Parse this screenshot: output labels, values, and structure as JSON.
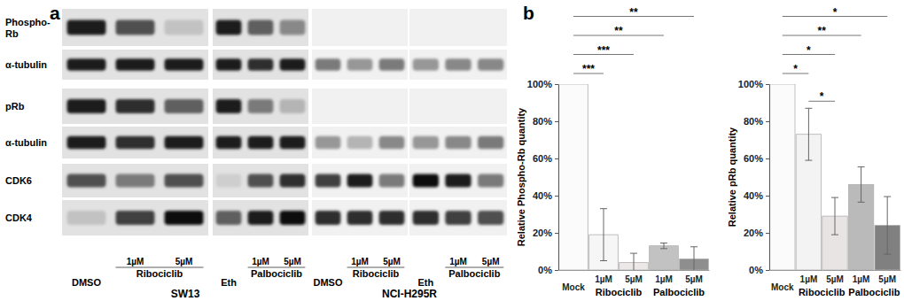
{
  "panel_labels": [
    "a",
    "b"
  ],
  "blot": {
    "row_labels": [
      [
        "Phospho-",
        "Rb"
      ],
      [
        "α-tubulin"
      ],
      [
        "pRb"
      ],
      [
        "α-tubulin"
      ],
      [
        "CDK6"
      ],
      [
        "CDK4"
      ]
    ],
    "cell_lines": [
      {
        "name": "SW13",
        "treatments": [
          {
            "control": "DMSO",
            "drug": "Ribociclib",
            "doses": [
              "1µM",
              "5µM"
            ]
          },
          {
            "control": "Eth",
            "drug": "Palbociclib",
            "doses": [
              "1µM",
              "5µM"
            ]
          }
        ]
      },
      {
        "name": "NCI-H295R",
        "treatments": [
          {
            "control": "DMSO",
            "drug": "Ribociclib",
            "doses": [
              "1µM",
              "5µM"
            ]
          },
          {
            "control": "Eth",
            "drug": "Palbociclib",
            "doses": [
              "1µM",
              "5µM"
            ]
          }
        ]
      }
    ]
  },
  "chart_data": [
    {
      "type": "bar",
      "y_label": "Relative Phospho-Rb quantity",
      "categories": [
        "Mock",
        "1µM",
        "5µM",
        "1µM",
        "5µM"
      ],
      "values": [
        100,
        19,
        4,
        13,
        6
      ],
      "errors": [
        null,
        14,
        5,
        1.5,
        6.5
      ],
      "colors": [
        "#fbfbfb",
        "#f6f6f6",
        "#ece8e8",
        "#c2c2c2",
        "#8e8e8e"
      ],
      "ylim": [
        0,
        100
      ],
      "yticks": [
        {
          "value": 0,
          "label": "0%"
        },
        {
          "value": 20,
          "label": "20%"
        },
        {
          "value": 40,
          "label": "40%"
        },
        {
          "value": 60,
          "label": "60%"
        },
        {
          "value": 80,
          "label": "80%"
        },
        {
          "value": 100,
          "label": "100%"
        }
      ],
      "groups": [
        {
          "label": "Ribociclib",
          "from": 1,
          "to": 2
        },
        {
          "label": "Palbociclib",
          "from": 3,
          "to": 4
        }
      ],
      "significance": [
        {
          "from": 0,
          "to": 1,
          "label": "***"
        },
        {
          "from": 0,
          "to": 2,
          "label": "***"
        },
        {
          "from": 0,
          "to": 3,
          "label": "**"
        },
        {
          "from": 0,
          "to": 4,
          "label": "**"
        }
      ]
    },
    {
      "type": "bar",
      "y_label": "Relative pRb quantity",
      "categories": [
        "Mock",
        "1µM",
        "5µM",
        "1µM",
        "5µM"
      ],
      "values": [
        100,
        73,
        29,
        46,
        24
      ],
      "errors": [
        null,
        14,
        10,
        9.5,
        15.5
      ],
      "colors": [
        "#fbfbfb",
        "#f3f3f3",
        "#e8e4e4",
        "#bababa",
        "#808080"
      ],
      "ylim": [
        0,
        100
      ],
      "yticks": [
        {
          "value": 0,
          "label": "0%"
        },
        {
          "value": 20,
          "label": "20%"
        },
        {
          "value": 40,
          "label": "40%"
        },
        {
          "value": 60,
          "label": "60%"
        },
        {
          "value": 80,
          "label": "80%"
        },
        {
          "value": 100,
          "label": "100%"
        }
      ],
      "groups": [
        {
          "label": "Ribociclib",
          "from": 1,
          "to": 2
        },
        {
          "label": "Palbociclib",
          "from": 3,
          "to": 4
        }
      ],
      "significance": [
        {
          "from": 1,
          "to": 2,
          "label": "*"
        },
        {
          "from": 0,
          "to": 1,
          "label": "*"
        },
        {
          "from": 0,
          "to": 2,
          "label": "*"
        },
        {
          "from": 0,
          "to": 3,
          "label": "**"
        },
        {
          "from": 0,
          "to": 4,
          "label": "*"
        }
      ]
    }
  ]
}
